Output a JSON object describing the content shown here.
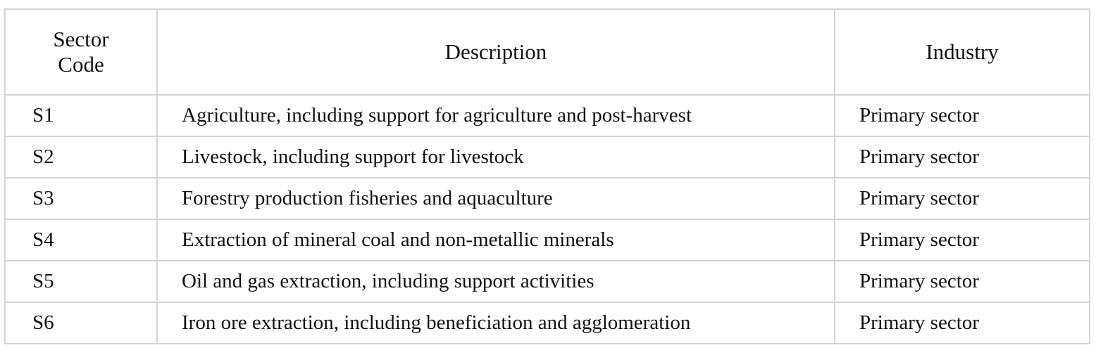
{
  "table": {
    "headers": [
      "Sector Code",
      "Description",
      "Industry"
    ],
    "header_lines": {
      "sector_code": [
        "Sector",
        "Code"
      ]
    },
    "rows": [
      {
        "code": "S1",
        "description": "Agriculture, including support for agriculture and post-harvest",
        "industry": "Primary sector"
      },
      {
        "code": "S2",
        "description": "Livestock, including support for livestock",
        "industry": "Primary sector"
      },
      {
        "code": "S3",
        "description": "Forestry production fisheries and aquaculture",
        "industry": "Primary sector"
      },
      {
        "code": "S4",
        "description": "Extraction of mineral coal and non-metallic minerals",
        "industry": "Primary sector"
      },
      {
        "code": "S5",
        "description": "Oil and gas extraction, including support activities",
        "industry": "Primary sector"
      },
      {
        "code": "S6",
        "description": "Iron ore extraction, including beneficiation and agglomeration",
        "industry": "Primary sector"
      }
    ]
  }
}
